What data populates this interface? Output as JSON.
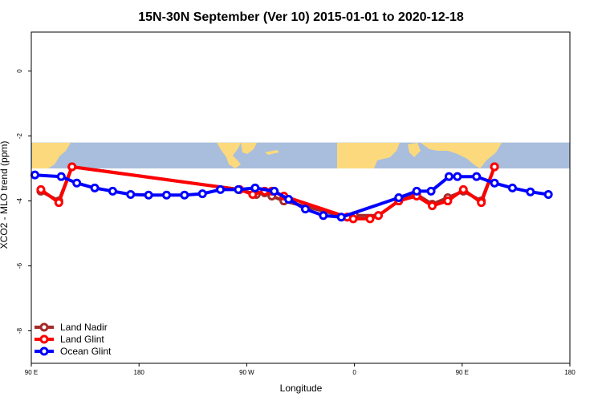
{
  "chart_data": {
    "type": "line",
    "title": "15N-30N September (Ver 10)   2015-01-01 to 2020-12-18",
    "xlabel": "Longitude",
    "ylabel": "XCO2 - MLO trend (ppm)",
    "xlim": [
      90,
      540
    ],
    "ylim": [
      -9,
      1.2
    ],
    "x_ticks": [
      {
        "value": 90,
        "label": "90 E"
      },
      {
        "value": 180,
        "label": "180"
      },
      {
        "value": 270,
        "label": "90 W"
      },
      {
        "value": 360,
        "label": "0"
      },
      {
        "value": 450,
        "label": "90 E"
      },
      {
        "value": 540,
        "label": "180"
      }
    ],
    "y_ticks": [
      {
        "value": 0,
        "label": "0"
      },
      {
        "value": -2,
        "label": "-2"
      },
      {
        "value": -4,
        "label": "-4"
      },
      {
        "value": -6,
        "label": "-6"
      },
      {
        "value": -8,
        "label": "-8"
      }
    ],
    "map_strip": {
      "ymin": -3.0,
      "ymax": -2.2,
      "ocean_color": "#a8bedc",
      "land_color": "#fcd97c"
    },
    "legend": {
      "position": "bottom-left"
    },
    "series": [
      {
        "name": "Land Nadir",
        "color": "#a52a2a",
        "points": [
          [
            98,
            -3.7
          ],
          [
            113,
            -4.0
          ],
          [
            124,
            -2.95
          ],
          [
            264,
            -3.65
          ],
          [
            278,
            -3.8
          ],
          [
            285,
            -3.75
          ],
          [
            291,
            -3.85
          ],
          [
            301,
            -4.0
          ],
          [
            354,
            -4.5
          ],
          [
            360,
            -4.45
          ],
          [
            380,
            -4.45
          ],
          [
            397,
            -4.0
          ],
          [
            412,
            -3.8
          ],
          [
            425,
            -4.1
          ],
          [
            438,
            -3.9
          ],
          [
            451,
            -3.7
          ],
          [
            466,
            -4.0
          ],
          [
            477,
            -2.95
          ]
        ]
      },
      {
        "name": "Land Glint",
        "color": "#ff0000",
        "points": [
          [
            98,
            -3.65
          ],
          [
            113,
            -4.05
          ],
          [
            124,
            -2.95
          ],
          [
            264,
            -3.65
          ],
          [
            275,
            -3.8
          ],
          [
            285,
            -3.7
          ],
          [
            291,
            -3.7
          ],
          [
            301,
            -3.85
          ],
          [
            354,
            -4.5
          ],
          [
            359,
            -4.55
          ],
          [
            373,
            -4.55
          ],
          [
            380,
            -4.45
          ],
          [
            397,
            -4.0
          ],
          [
            412,
            -3.85
          ],
          [
            425,
            -4.15
          ],
          [
            438,
            -4.0
          ],
          [
            451,
            -3.65
          ],
          [
            466,
            -4.05
          ],
          [
            477,
            -2.95
          ]
        ]
      },
      {
        "name": "Ocean Glint",
        "color": "#0000ff",
        "points": [
          [
            93,
            -3.2
          ],
          [
            115,
            -3.25
          ],
          [
            128,
            -3.45
          ],
          [
            143,
            -3.6
          ],
          [
            158,
            -3.7
          ],
          [
            173,
            -3.8
          ],
          [
            188,
            -3.82
          ],
          [
            203,
            -3.82
          ],
          [
            218,
            -3.82
          ],
          [
            233,
            -3.78
          ],
          [
            248,
            -3.65
          ],
          [
            263,
            -3.65
          ],
          [
            277,
            -3.6
          ],
          [
            293,
            -3.7
          ],
          [
            305,
            -3.95
          ],
          [
            319,
            -4.25
          ],
          [
            334,
            -4.45
          ],
          [
            349,
            -4.5
          ],
          [
            397,
            -3.9
          ],
          [
            412,
            -3.7
          ],
          [
            424,
            -3.7
          ],
          [
            439,
            -3.25
          ],
          [
            446,
            -3.25
          ],
          [
            462,
            -3.25
          ],
          [
            477,
            -3.45
          ],
          [
            492,
            -3.6
          ],
          [
            507,
            -3.72
          ],
          [
            522,
            -3.8
          ]
        ]
      }
    ]
  }
}
